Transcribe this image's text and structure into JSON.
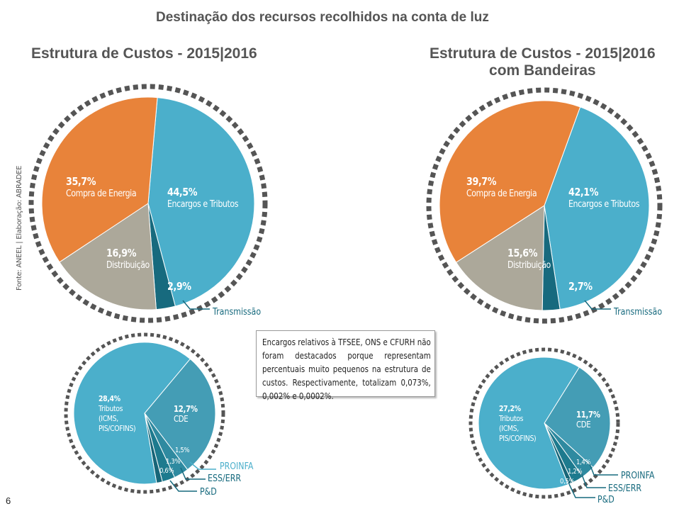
{
  "title": "Destinação dos recursos recolhidos na conta de luz",
  "page_number": "6",
  "source": "Fonte: ANEEL | Elaboração: ABRADEE",
  "note": "Encargos relativos à TFSEE, ONS e CFURH não foram destacados porque representam percentuais muito pequenos na estrutura de custos. Respectivamente, totalizam 0,073%, 0,002% e 0,0002%.",
  "colors": {
    "compra": "#E8833A",
    "encargos": "#4BAFCB",
    "distribuicao": "#ACA89A",
    "transmissao": "#176A7E",
    "cde": "#449DB5",
    "proinfa": "#2F8AA0",
    "ess": "#1D7A8E",
    "pd": "#176578",
    "ring": "#555555"
  },
  "chart_data": [
    {
      "type": "pie",
      "title": "Estrutura de Custos - 2015|2016",
      "slices": [
        {
          "name": "Encargos e Tributos",
          "value": 44.5,
          "label": "44,5%"
        },
        {
          "name": "Transmissão",
          "value": 2.9,
          "label": "2,9%"
        },
        {
          "name": "Distribuição",
          "value": 16.9,
          "label": "16,9%"
        },
        {
          "name": "Compra de Energia",
          "value": 35.7,
          "label": "35,7%"
        }
      ]
    },
    {
      "type": "pie",
      "title": "Estrutura de Custos - 2015|2016 com Bandeiras",
      "slices": [
        {
          "name": "Encargos e Tributos",
          "value": 42.1,
          "label": "42,1%"
        },
        {
          "name": "Transmissão",
          "value": 2.7,
          "label": "2,7%"
        },
        {
          "name": "Distribuição",
          "value": 15.6,
          "label": "15,6%"
        },
        {
          "name": "Compra de Energia",
          "value": 39.7,
          "label": "39,7%"
        }
      ]
    },
    {
      "type": "pie",
      "title": "",
      "slices": [
        {
          "name": "CDE",
          "value": 12.7,
          "label": "12,7%"
        },
        {
          "name": "PROINFA",
          "value": 1.5,
          "label": "1,5%"
        },
        {
          "name": "ESS/ERR",
          "value": 1.3,
          "label": "1,3%"
        },
        {
          "name": "P&D",
          "value": 0.6,
          "label": "0,6%"
        },
        {
          "name": "Tributos (ICMS, PIS/COFINS)",
          "value": 28.4,
          "label": "28,4%"
        }
      ]
    },
    {
      "type": "pie",
      "title": "",
      "slices": [
        {
          "name": "CDE",
          "value": 11.7,
          "label": "11,7%"
        },
        {
          "name": "PROINFA",
          "value": 1.4,
          "label": "1,4%"
        },
        {
          "name": "ESS/ERR",
          "value": 1.2,
          "label": "1,2%"
        },
        {
          "name": "P&D",
          "value": 0.5,
          "label": "0,5%"
        },
        {
          "name": "Tributos (ICMS, PIS/COFINS)",
          "value": 27.2,
          "label": "27,2%"
        }
      ]
    }
  ],
  "labels": {
    "tributos_l1": "Tributos",
    "tributos_l2": "(ICMS,",
    "tributos_l3": "PIS/COFINS)",
    "h2_right_l1": "Estrutura de Custos - 2015|2016",
    "h2_right_l2": "com Bandeiras"
  }
}
